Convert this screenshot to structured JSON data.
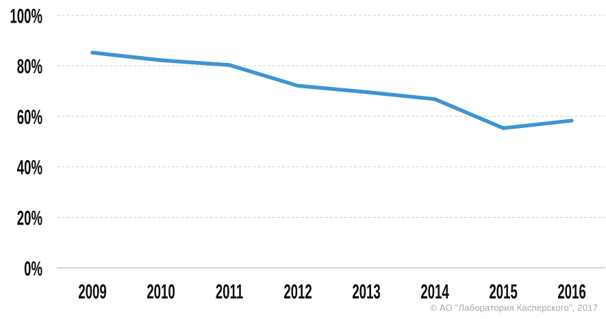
{
  "page": {
    "background": "#ffffff"
  },
  "chart_data": {
    "type": "line",
    "categories": [
      "2009",
      "2010",
      "2011",
      "2012",
      "2013",
      "2014",
      "2015",
      "2016"
    ],
    "values": [
      85.2,
      82.2,
      80.3,
      72.1,
      69.6,
      66.8,
      55.3,
      58.3
    ],
    "title": "",
    "xlabel": "",
    "ylabel": "",
    "ylim": [
      0,
      100
    ],
    "yticks": [
      0,
      20,
      40,
      60,
      80,
      100
    ],
    "ytick_labels": [
      "0%",
      "20%",
      "40%",
      "60%",
      "80%",
      "100%"
    ],
    "grid": "horizontal-dashed",
    "legend": "none",
    "line_color": "#3E94D0",
    "tick_color": "#0B0B0B",
    "gridline_color": "#CFCFCF",
    "axisline_color": "#C2C2C2"
  },
  "footer": {
    "copyright": "© АО \"Лаборатория Касперского\", 2017",
    "color": "#A5A5A5"
  }
}
